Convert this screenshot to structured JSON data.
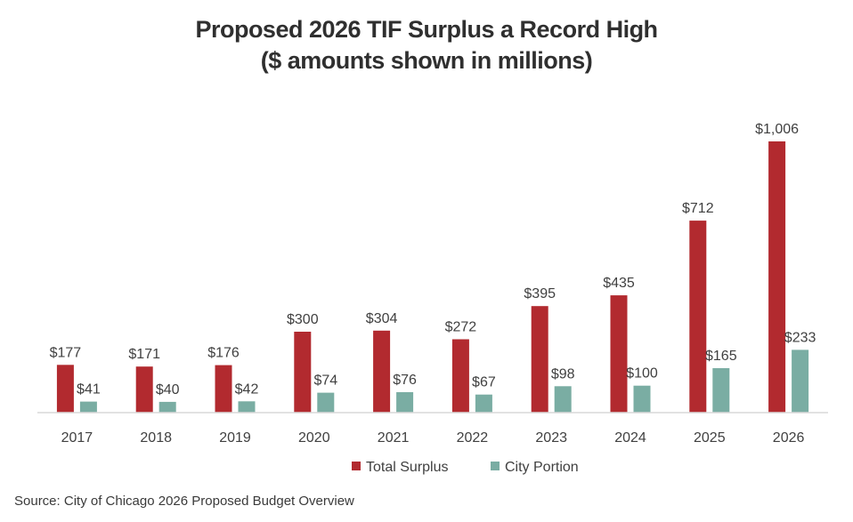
{
  "title_line1": "Proposed 2026 TIF Surplus a Record High",
  "title_line2": "($ amounts shown in millions)",
  "source": "Source: City of Chicago 2026 Proposed Budget Overview",
  "chart_data": {
    "type": "bar",
    "title": "Proposed 2026 TIF Surplus a Record High ($ amounts shown in millions)",
    "xlabel": "",
    "ylabel": "",
    "ylim": [
      0,
      1006
    ],
    "grid": false,
    "legend_position": "bottom-center",
    "categories": [
      "2017",
      "2018",
      "2019",
      "2020",
      "2021",
      "2022",
      "2023",
      "2024",
      "2025",
      "2026"
    ],
    "series": [
      {
        "name": "Total Surplus",
        "color": "#b22a2f",
        "values": [
          177,
          171,
          176,
          300,
          304,
          272,
          395,
          435,
          712,
          1006
        ],
        "labels": [
          "$177",
          "$171",
          "$176",
          "$300",
          "$304",
          "$272",
          "$395",
          "$435",
          "$712",
          "$1,006"
        ]
      },
      {
        "name": "City Portion",
        "color": "#7aada3",
        "values": [
          41,
          40,
          42,
          74,
          76,
          67,
          98,
          100,
          165,
          233
        ],
        "labels": [
          "$41",
          "$40",
          "$42",
          "$74",
          "$76",
          "$67",
          "$98",
          "$100",
          "$165",
          "$233"
        ]
      }
    ]
  }
}
